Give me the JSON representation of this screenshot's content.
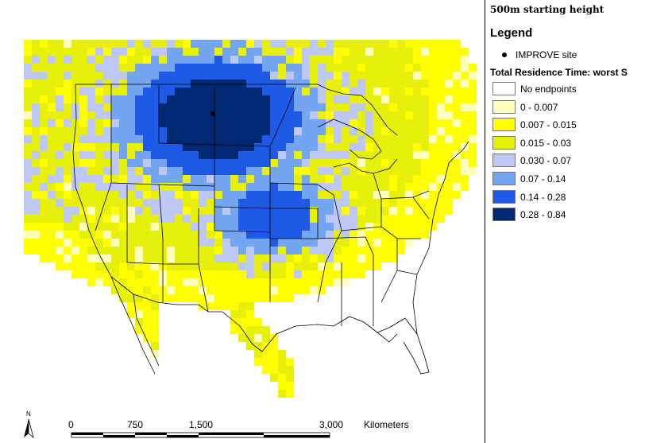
{
  "header": {
    "starting_height": "500m starting height"
  },
  "legend": {
    "title": "Legend",
    "site": {
      "label": "IMPROVE site",
      "color": "#000000"
    },
    "residence_title": "Total Residence Time: worst S",
    "items": [
      {
        "label": "No endpoints",
        "color": "#ffffff"
      },
      {
        "label": "0 - 0.007",
        "color": "#ffffbe"
      },
      {
        "label": "0.007 - 0.015",
        "color": "#ffff00"
      },
      {
        "label": "0.015 - 0.03",
        "color": "#e6f00a"
      },
      {
        "label": "0.030 - 0.07",
        "color": "#bec8f5"
      },
      {
        "label": "0.07 - 0.14",
        "color": "#73a5f0"
      },
      {
        "label": "0.14 - 0.28",
        "color": "#1e5ae6"
      },
      {
        "label": "0.28 - 0.84",
        "color": "#002873"
      }
    ]
  },
  "scale_bar": {
    "ticks": [
      "0",
      "750",
      "1,500",
      "3,000"
    ],
    "unit": "Kilometers"
  },
  "north_arrow": {
    "label": "N"
  }
}
